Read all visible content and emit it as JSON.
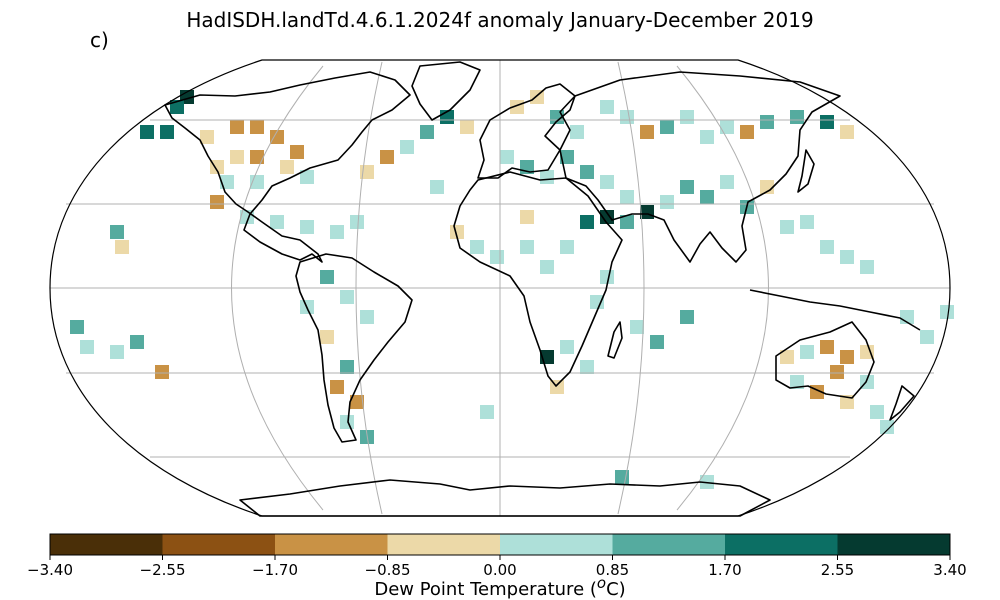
{
  "title": "HadISDH.landTd.4.6.1.2024f anomaly January-December 2019",
  "panel_label": "c)",
  "colorbar": {
    "label": "Dew Point Temperature (",
    "label_sup": "o",
    "label_end": "C)",
    "ticks": [
      "−3.40",
      "−2.55",
      "−1.70",
      "−0.85",
      "0.00",
      "0.85",
      "1.70",
      "2.55",
      "3.40"
    ],
    "colors": [
      "#4a2f08",
      "#8c5113",
      "#c99245",
      "#ecd9a8",
      "#aee0d9",
      "#55ab9f",
      "#0c6f64",
      "#053a30"
    ]
  },
  "colors": {
    "gridline": "#b0b0b0",
    "coast": "#000000",
    "frame": "#000000"
  }
}
